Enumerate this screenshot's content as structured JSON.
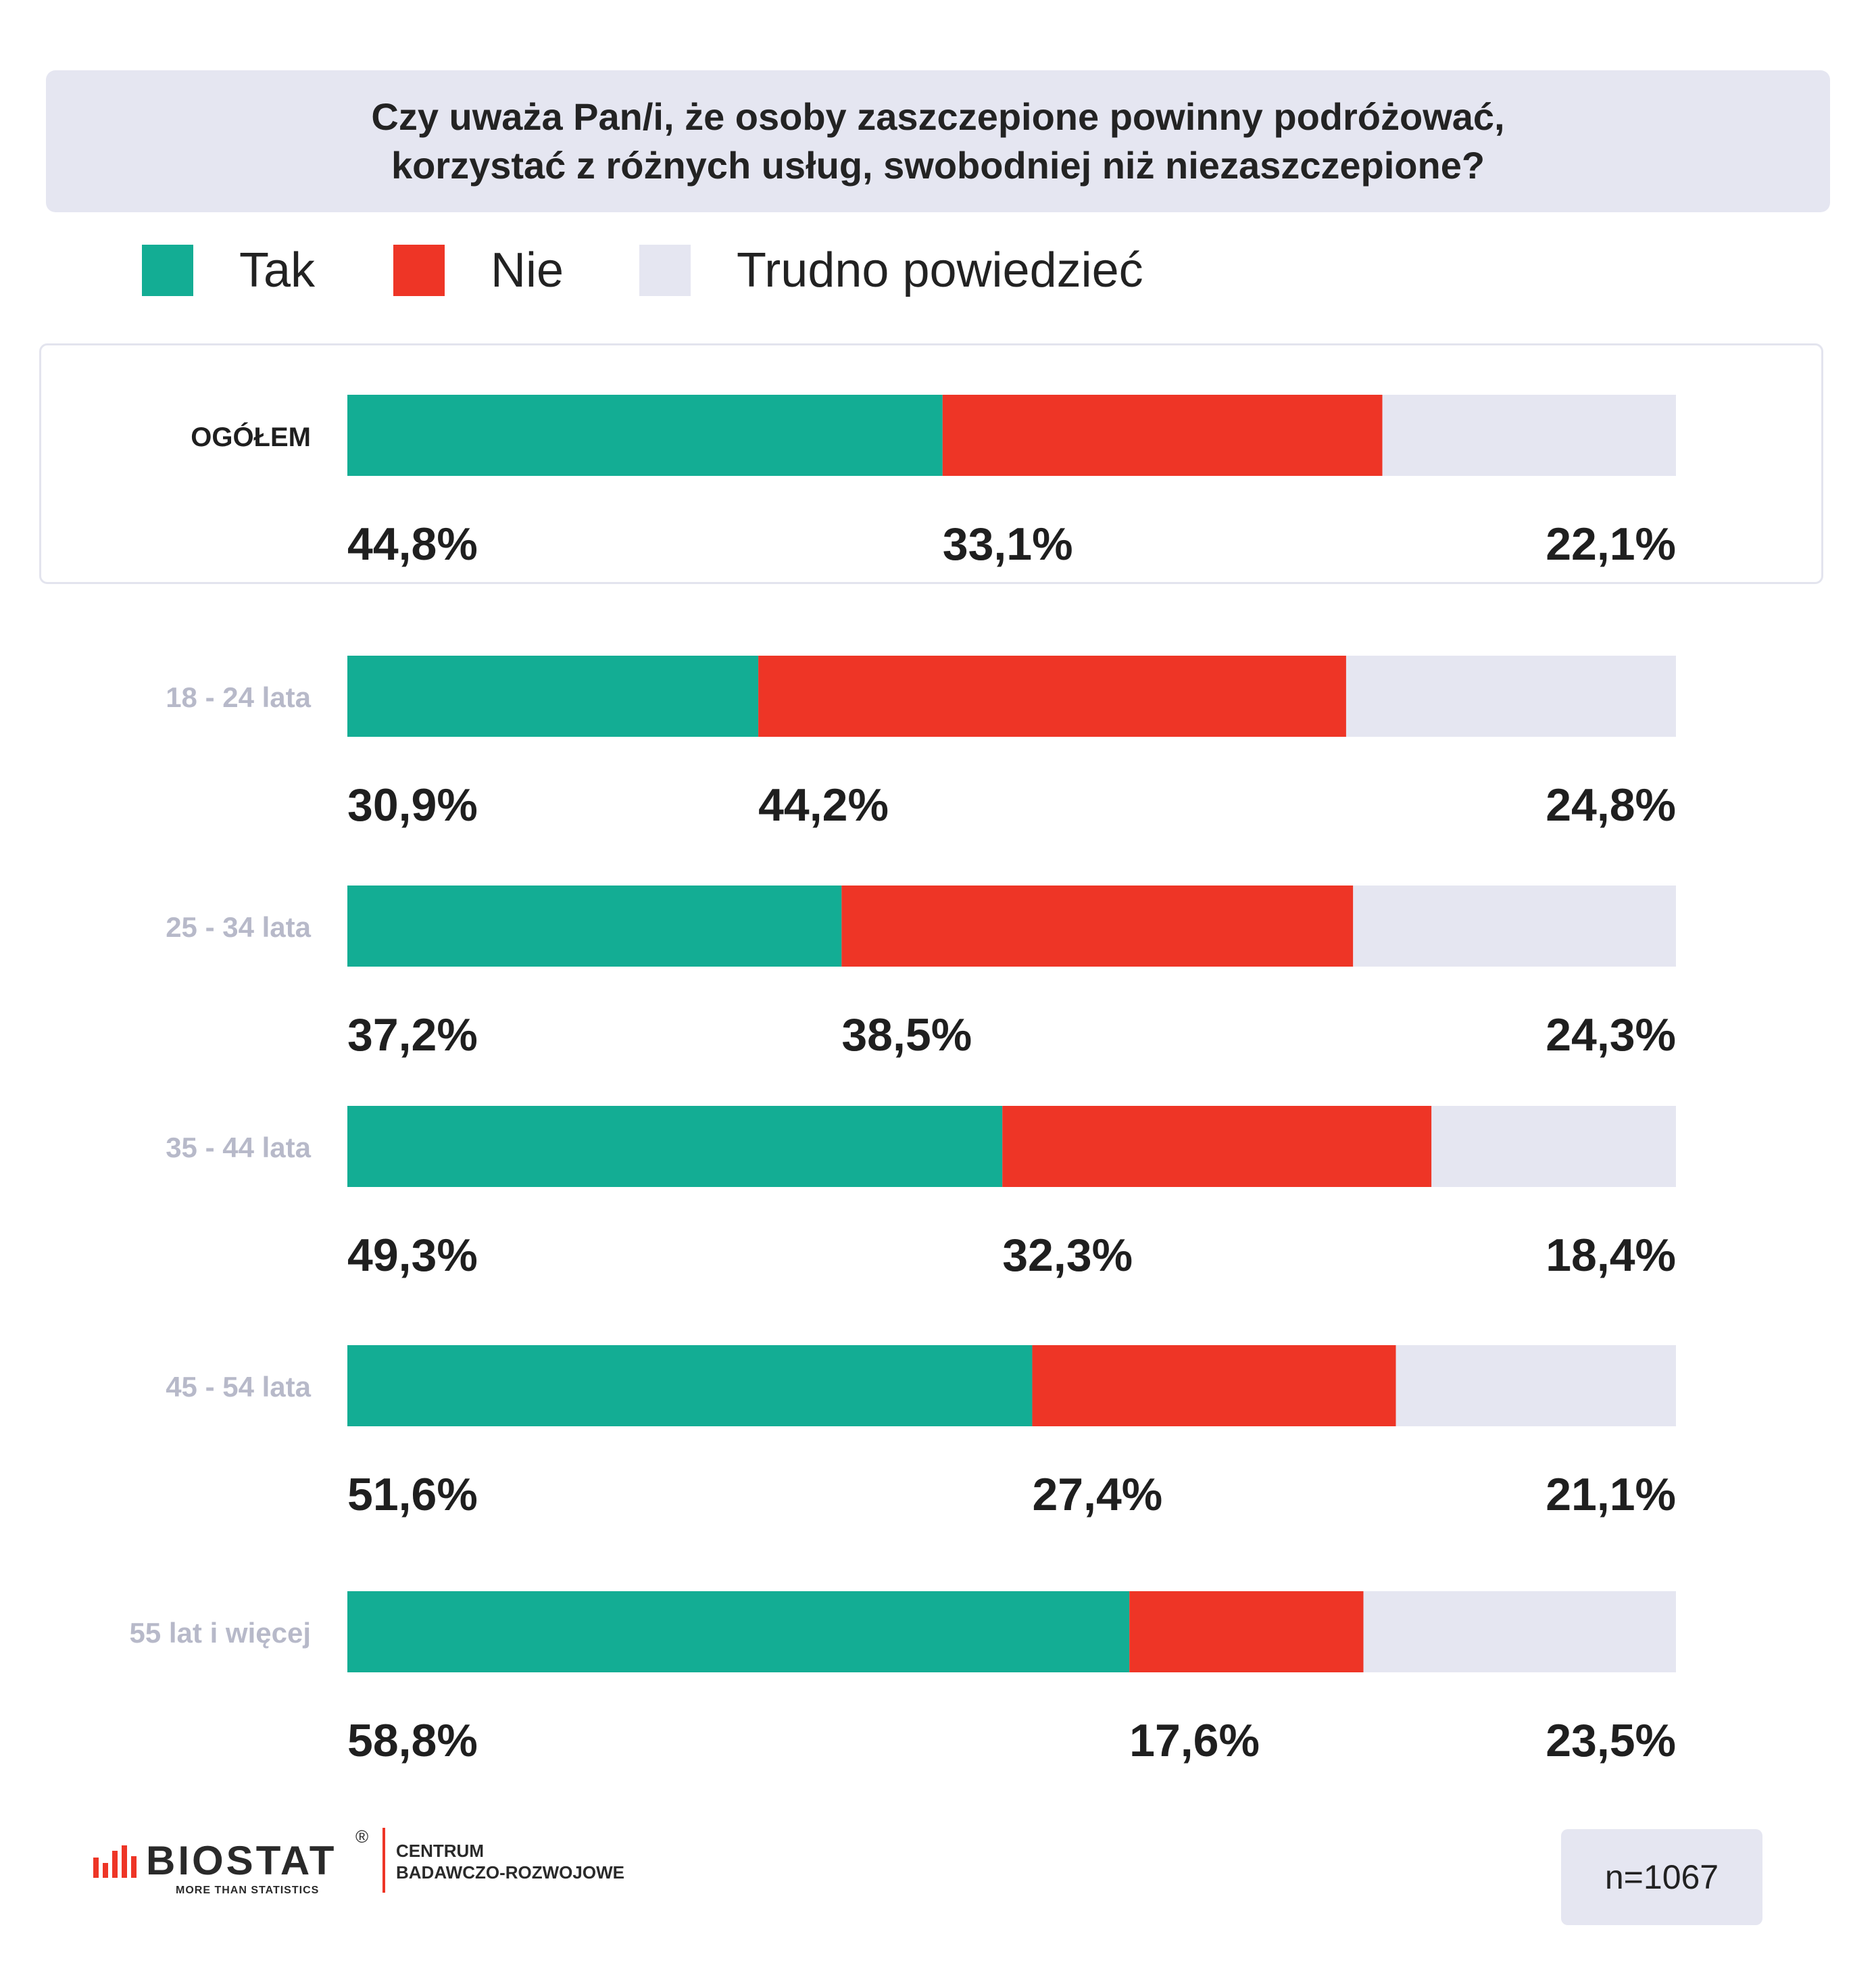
{
  "chart_data": {
    "type": "bar",
    "orientation": "horizontal",
    "stacked": true,
    "title": "Czy uważa Pan/i, że osoby zaszczepione powinny podróżować, korzystać z różnych usług, swobodniej niż niezaszczepione?",
    "title_lines": [
      "Czy uważa Pan/i, że osoby zaszczepione powinny podróżować,",
      "korzystać z różnych usług, swobodniej niż niezaszczepione?"
    ],
    "categories": [
      "OGÓŁEM",
      "18 - 24 lata",
      "25 - 34 lata",
      "35 - 44 lata",
      "45 - 54 lata",
      "55 lat i więcej"
    ],
    "series": [
      {
        "name": "Tak",
        "color": "#13ad94",
        "values": [
          44.8,
          30.9,
          37.2,
          49.3,
          51.6,
          58.8
        ],
        "labels": [
          "44,8%",
          "30,9%",
          "37,2%",
          "49,3%",
          "51,6%",
          "58,8%"
        ]
      },
      {
        "name": "Nie",
        "color": "#ee3526",
        "values": [
          33.1,
          44.2,
          38.5,
          32.3,
          27.4,
          17.6
        ],
        "labels": [
          "33,1%",
          "44,2%",
          "38,5%",
          "32,3%",
          "27,4%",
          "17,6%"
        ]
      },
      {
        "name": "Trudno powiedzieć",
        "color": "#e5e6f1",
        "values": [
          22.1,
          24.8,
          24.3,
          18.4,
          21.1,
          23.5
        ],
        "labels": [
          "22,1%",
          "24,8%",
          "24,3%",
          "18,4%",
          "21,1%",
          "23,5%"
        ]
      }
    ],
    "xlim": [
      0,
      100
    ],
    "legend_position": "top-left",
    "grid": false,
    "unit": "%"
  },
  "footer": {
    "brand": "BIOSTAT",
    "registered": "®",
    "tagline": "MORE THAN STATISTICS",
    "centrum_line1": "CENTRUM",
    "centrum_line2": "BADAWCZO-ROZWOJOWE",
    "sample_size": "n=1067",
    "accent_color": "#ee3526"
  }
}
